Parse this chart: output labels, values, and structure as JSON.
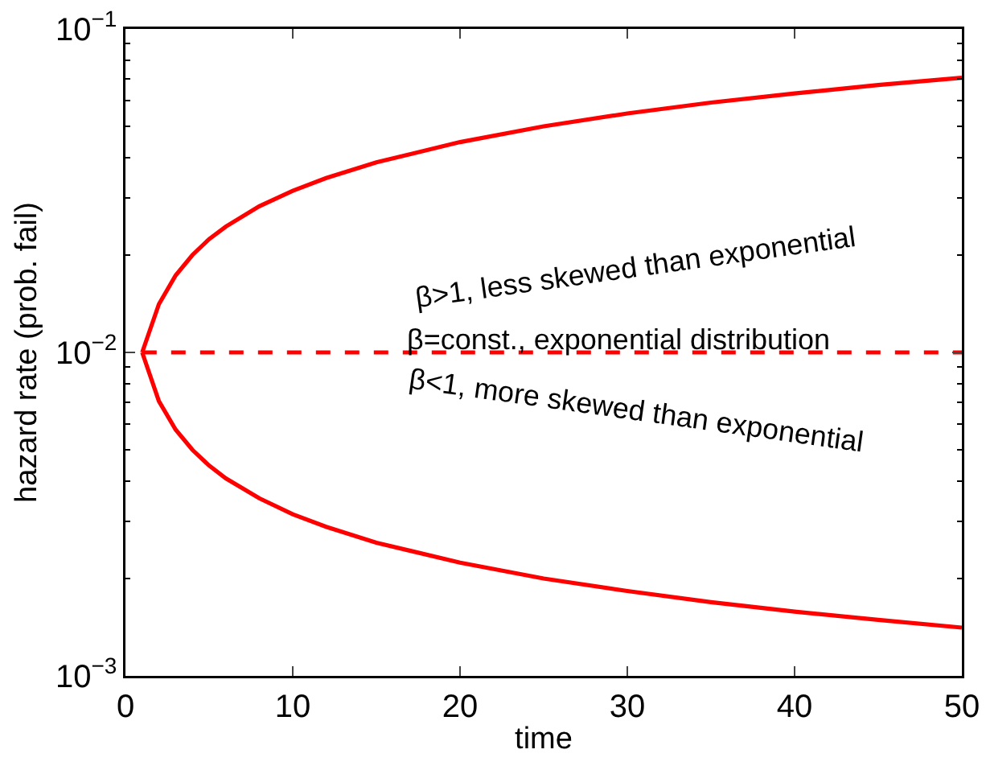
{
  "chart_data": {
    "type": "line",
    "xlabel": "time",
    "ylabel": "hazard rate (prob. fail)",
    "log": "y",
    "grid": false,
    "marker": "none",
    "xlim": [
      0,
      50
    ],
    "xticks": [
      0,
      10,
      20,
      30,
      40,
      50
    ],
    "ylim": [
      0.001,
      0.1
    ],
    "yticks": [
      {
        "value": 0.001,
        "label": "10$^{−3}$"
      },
      {
        "value": 0.01,
        "label": "10$^{−2}$"
      },
      {
        "value": 0.1,
        "label": "10$^{−1}$"
      }
    ],
    "series": [
      {
        "color": "#ff0000",
        "line_style": "solid",
        "x": [
          1,
          2,
          3,
          4,
          5,
          6,
          8,
          10,
          12,
          15,
          20,
          25,
          30,
          35,
          40,
          45,
          50
        ],
        "values": [
          0.01,
          0.0141,
          0.0173,
          0.02,
          0.0224,
          0.0245,
          0.0283,
          0.0316,
          0.0346,
          0.0387,
          0.0447,
          0.05,
          0.0548,
          0.0592,
          0.0632,
          0.0671,
          0.0707
        ]
      },
      {
        "color": "#ff0000",
        "line_style": "dashed",
        "x": [
          1,
          50
        ],
        "values": [
          0.01,
          0.01
        ]
      },
      {
        "color": "#ff0000",
        "line_style": "solid",
        "x": [
          1,
          2,
          3,
          4,
          5,
          6,
          8,
          10,
          12,
          15,
          20,
          25,
          30,
          35,
          40,
          45,
          50
        ],
        "values": [
          0.01,
          0.00707,
          0.00577,
          0.005,
          0.00447,
          0.00408,
          0.00354,
          0.00316,
          0.00289,
          0.00258,
          0.00224,
          0.002,
          0.00183,
          0.00169,
          0.00158,
          0.00149,
          0.00141
        ]
      }
    ],
    "annotations": [
      "β>1, less skewed than exponential",
      "β=const., exponential distribution",
      "β<1, more skewed than exponential"
    ]
  }
}
